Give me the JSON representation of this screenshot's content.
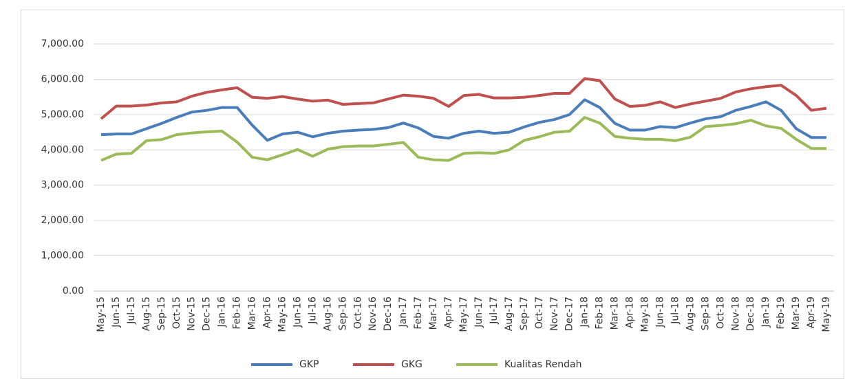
{
  "chart_data": {
    "type": "line",
    "categories": [
      "May-15",
      "Jun-15",
      "Jul-15",
      "Aug-15",
      "Sep-15",
      "Oct-15",
      "Nov-15",
      "Dec-15",
      "Jan-16",
      "Feb-16",
      "Mar-16",
      "Apr-16",
      "May-16",
      "Jun-16",
      "Jul-16",
      "Aug-16",
      "Sep-16",
      "Oct-16",
      "Nov-16",
      "Dec-16",
      "Jan-17",
      "Feb-17",
      "Mar-17",
      "Apr-17",
      "May-17",
      "Jun-17",
      "Jul-17",
      "Aug-17",
      "Sep-17",
      "Oct-17",
      "Nov-17",
      "Dec-17",
      "Jan-18",
      "Feb-18",
      "Mar-18",
      "Apr-18",
      "May-18",
      "Jun-18",
      "Jul-18",
      "Aug-18",
      "Sep-18",
      "Oct-18",
      "Nov-18",
      "Dec-18",
      "Jan-19",
      "Feb-19",
      "Mar-19",
      "Apr-19",
      "May-19"
    ],
    "series": [
      {
        "name": "GKP",
        "color": "#4a7ebb",
        "values": [
          4430,
          4450,
          4450,
          4600,
          4750,
          4920,
          5070,
          5120,
          5200,
          5200,
          4700,
          4270,
          4450,
          4500,
          4370,
          4470,
          4530,
          4560,
          4580,
          4630,
          4760,
          4620,
          4380,
          4330,
          4470,
          4530,
          4470,
          4500,
          4650,
          4780,
          4860,
          5000,
          5420,
          5200,
          4750,
          4560,
          4560,
          4660,
          4630,
          4760,
          4880,
          4940,
          5120,
          5230,
          5360,
          5120,
          4600,
          4350,
          4350
        ]
      },
      {
        "name": "GKG",
        "color": "#c0504d",
        "values": [
          4880,
          5240,
          5240,
          5270,
          5330,
          5360,
          5520,
          5630,
          5700,
          5760,
          5490,
          5460,
          5510,
          5440,
          5380,
          5410,
          5290,
          5310,
          5330,
          5440,
          5550,
          5520,
          5460,
          5230,
          5540,
          5570,
          5470,
          5470,
          5490,
          5540,
          5600,
          5600,
          6020,
          5960,
          5440,
          5230,
          5260,
          5360,
          5200,
          5300,
          5380,
          5460,
          5640,
          5730,
          5790,
          5830,
          5540,
          5120,
          5180
        ]
      },
      {
        "name": "Kualitas Rendah",
        "color": "#9bbb59",
        "values": [
          3700,
          3880,
          3900,
          4260,
          4290,
          4430,
          4480,
          4510,
          4530,
          4220,
          3790,
          3720,
          3860,
          4010,
          3820,
          4020,
          4090,
          4110,
          4110,
          4160,
          4210,
          3790,
          3720,
          3700,
          3900,
          3920,
          3900,
          4000,
          4270,
          4370,
          4500,
          4530,
          4920,
          4760,
          4380,
          4330,
          4300,
          4300,
          4260,
          4360,
          4660,
          4690,
          4740,
          4840,
          4680,
          4610,
          4300,
          4040,
          4040
        ]
      }
    ],
    "ylim": [
      0,
      7000
    ],
    "yticks": [
      {
        "value": 0,
        "label": "0.00"
      },
      {
        "value": 1000,
        "label": "1,000.00"
      },
      {
        "value": 2000,
        "label": "2,000.00"
      },
      {
        "value": 3000,
        "label": "3,000.00"
      },
      {
        "value": 4000,
        "label": "4,000.00"
      },
      {
        "value": 5000,
        "label": "5,000.00"
      },
      {
        "value": 6000,
        "label": "6,000.00"
      },
      {
        "value": 7000,
        "label": "7,000.00"
      }
    ],
    "grid": true
  }
}
